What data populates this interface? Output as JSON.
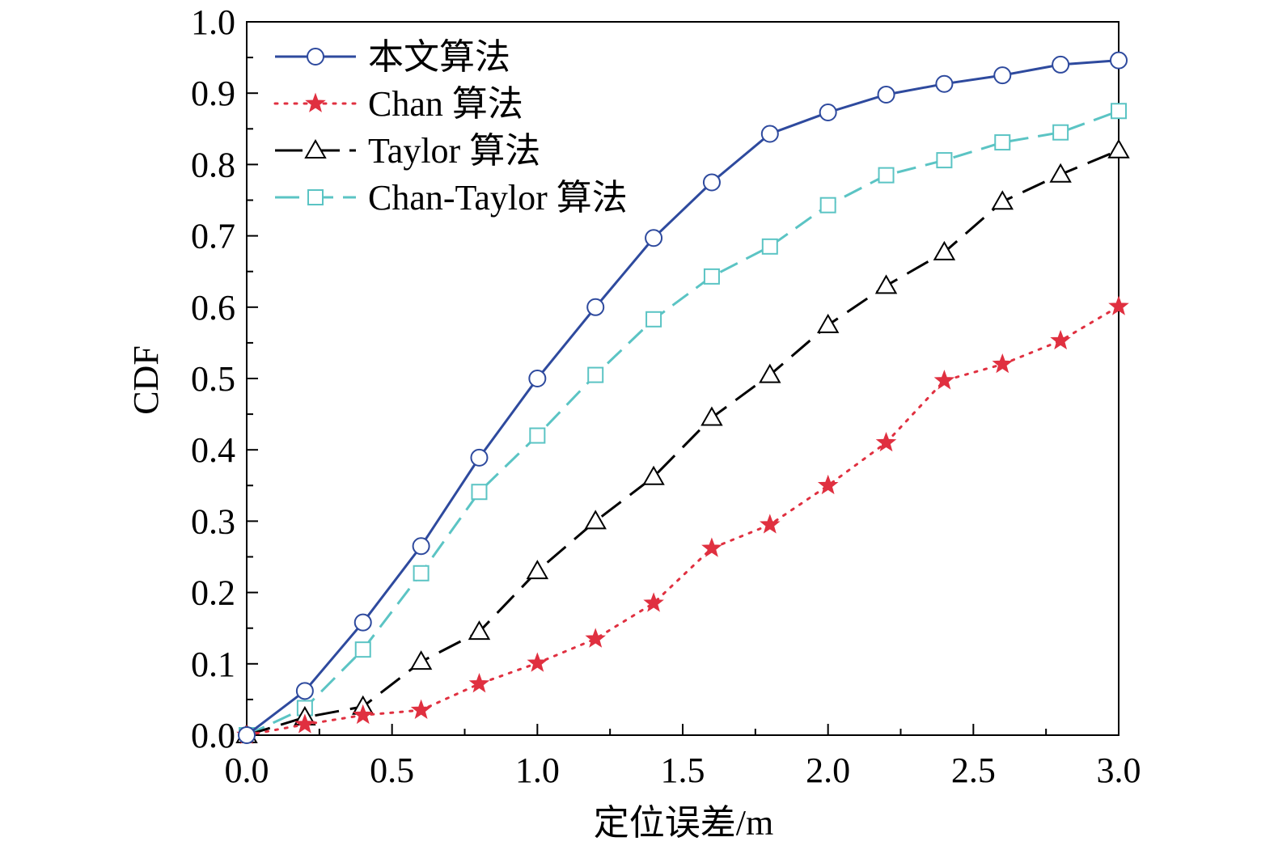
{
  "chart_data": {
    "type": "line",
    "xlabel": "定位误差/m",
    "ylabel": "CDF",
    "xlim": [
      0,
      3
    ],
    "ylim": [
      0,
      1
    ],
    "xticks": [
      "0.0",
      "0.5",
      "1.0",
      "1.5",
      "2.0",
      "2.5",
      "3.0"
    ],
    "yticks": [
      "0.0",
      "0.1",
      "0.2",
      "0.3",
      "0.4",
      "0.5",
      "0.6",
      "0.7",
      "0.8",
      "0.9",
      "1.0"
    ],
    "grid": false,
    "legend_position": "top-left",
    "x": [
      0.0,
      0.2,
      0.4,
      0.6,
      0.8,
      1.0,
      1.2,
      1.4,
      1.6,
      1.8,
      2.0,
      2.2,
      2.4,
      2.6,
      2.8,
      3.0
    ],
    "series": [
      {
        "name": "本文算法",
        "color": "#2e4a9e",
        "marker": "circle",
        "dash": "solid",
        "values": [
          0.0,
          0.062,
          0.158,
          0.265,
          0.389,
          0.5,
          0.6,
          0.697,
          0.775,
          0.843,
          0.873,
          0.898,
          0.913,
          0.925,
          0.94,
          0.946
        ]
      },
      {
        "name": "Chan 算法",
        "color": "#e03040",
        "marker": "star",
        "dash": "dotted",
        "values": [
          0.0,
          0.015,
          0.028,
          0.035,
          0.072,
          0.101,
          0.135,
          0.185,
          0.262,
          0.295,
          0.35,
          0.41,
          0.497,
          0.52,
          0.553,
          0.601
        ]
      },
      {
        "name": "Taylor 算法",
        "color": "#000000",
        "marker": "triangle",
        "dash": "longdash",
        "values": [
          0.0,
          0.025,
          0.04,
          0.103,
          0.145,
          0.23,
          0.3,
          0.362,
          0.445,
          0.505,
          0.575,
          0.63,
          0.677,
          0.748,
          0.786,
          0.82
        ]
      },
      {
        "name": "Chan-Taylor 算法",
        "color": "#5bc4c4",
        "marker": "square",
        "dash": "dashed",
        "values": [
          0.0,
          0.038,
          0.12,
          0.227,
          0.341,
          0.42,
          0.505,
          0.583,
          0.643,
          0.685,
          0.743,
          0.785,
          0.806,
          0.831,
          0.845,
          0.875
        ]
      }
    ]
  }
}
